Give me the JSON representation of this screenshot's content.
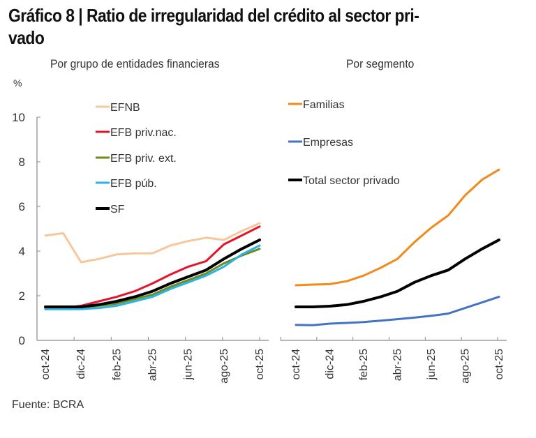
{
  "title": "Gráfico 8 | Ratio de irregularidad del crédito al sector pri-vado",
  "title_line1": "Gráfico 8 | Ratio de irregularidad del crédito al sector pri-",
  "title_line2": "vado",
  "source": "Fuente: BCRA",
  "chart_data": [
    {
      "type": "line",
      "title": "Por grupo de entidades financieras",
      "ylabel": "%",
      "xlabel": "",
      "ylim": [
        0,
        10
      ],
      "yticks": [
        "0",
        "2",
        "4",
        "6",
        "8",
        "10"
      ],
      "grid": false,
      "legend_position": "top-left",
      "x": [
        "oct-24",
        "nov-24",
        "dic-24",
        "ene-25",
        "feb-25",
        "mar-25",
        "abr-25",
        "may-25",
        "jun-25",
        "jul-25",
        "ago-25",
        "sep-25",
        "oct-25"
      ],
      "xtick_labels": [
        "oct-24",
        "dic-24",
        "feb-25",
        "abr-25",
        "jun-25",
        "ago-25",
        "oct-25"
      ],
      "series": [
        {
          "name": "EFNB",
          "color": "#F5C79A",
          "values": [
            4.7,
            4.8,
            3.5,
            3.65,
            3.85,
            3.9,
            3.9,
            4.25,
            4.45,
            4.6,
            4.5,
            4.9,
            5.25
          ]
        },
        {
          "name": "EFB priv.nac.",
          "color": "#E3142B",
          "values": [
            1.45,
            1.45,
            1.55,
            1.75,
            1.95,
            2.2,
            2.55,
            2.95,
            3.3,
            3.55,
            4.3,
            4.7,
            5.1
          ]
        },
        {
          "name": "EFB priv. ext.",
          "color": "#6E8B1E",
          "values": [
            1.4,
            1.45,
            1.45,
            1.55,
            1.65,
            1.85,
            2.05,
            2.4,
            2.7,
            3.0,
            3.45,
            3.8,
            4.1
          ]
        },
        {
          "name": "EFB púb.",
          "color": "#2BB3E3",
          "values": [
            1.4,
            1.4,
            1.4,
            1.45,
            1.55,
            1.75,
            1.95,
            2.3,
            2.6,
            2.9,
            3.3,
            3.85,
            4.25
          ]
        },
        {
          "name": "SF",
          "color": "#000000",
          "values": [
            1.5,
            1.5,
            1.5,
            1.6,
            1.75,
            1.95,
            2.2,
            2.55,
            2.85,
            3.15,
            3.65,
            4.1,
            4.5
          ]
        }
      ]
    },
    {
      "type": "line",
      "title": "Por segmento",
      "ylabel": "",
      "xlabel": "",
      "ylim": [
        0,
        10
      ],
      "grid": false,
      "legend_position": "top-left",
      "x": [
        "oct-24",
        "nov-24",
        "dic-24",
        "ene-25",
        "feb-25",
        "mar-25",
        "abr-25",
        "may-25",
        "jun-25",
        "jul-25",
        "ago-25",
        "sep-25",
        "oct-25"
      ],
      "xtick_labels": [
        "oct-24",
        "dic-24",
        "feb-25",
        "abr-25",
        "jun-25",
        "ago-25",
        "oct-25"
      ],
      "series": [
        {
          "name": "Familias",
          "color": "#F08A1C",
          "values": [
            2.47,
            2.5,
            2.52,
            2.65,
            2.9,
            3.25,
            3.65,
            4.4,
            5.05,
            5.6,
            6.5,
            7.2,
            7.65
          ]
        },
        {
          "name": "Empresas",
          "color": "#4472C4",
          "values": [
            0.69,
            0.68,
            0.75,
            0.78,
            0.82,
            0.88,
            0.95,
            1.02,
            1.1,
            1.2,
            1.45,
            1.7,
            1.95
          ]
        },
        {
          "name": "Total sector privado",
          "color": "#000000",
          "values": [
            1.5,
            1.5,
            1.53,
            1.6,
            1.75,
            1.95,
            2.2,
            2.6,
            2.9,
            3.15,
            3.65,
            4.1,
            4.5
          ]
        }
      ]
    }
  ]
}
